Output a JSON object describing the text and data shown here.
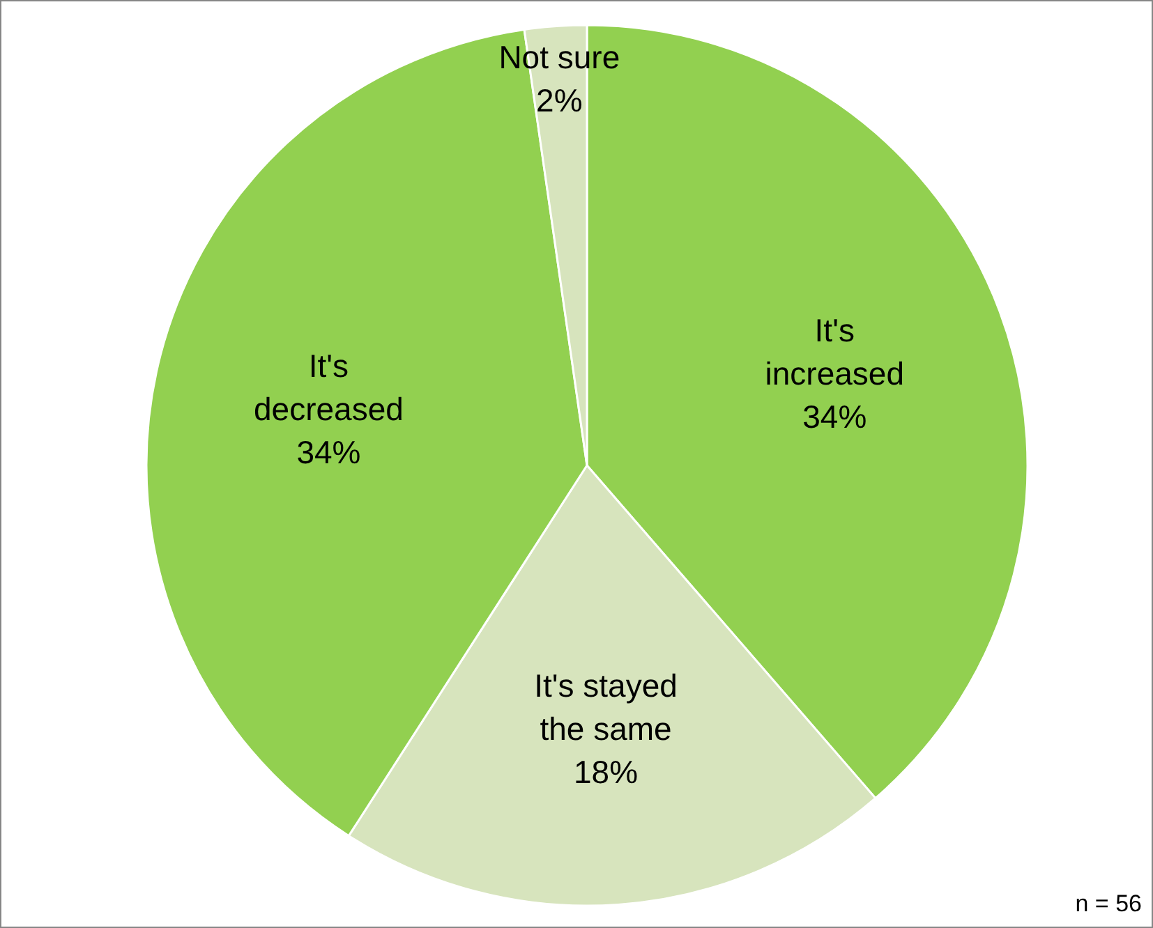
{
  "chart_data": {
    "type": "pie",
    "categories": [
      "It's increased",
      "It's stayed the same",
      "It's decreased",
      "Not sure"
    ],
    "values": [
      34,
      18,
      34,
      2
    ],
    "colors": [
      "#92d050",
      "#d7e4bd",
      "#92d050",
      "#d7e4bd"
    ],
    "value_labels": [
      "34%",
      "18%",
      "34%",
      "2%"
    ],
    "annotations": [
      "n = 56"
    ]
  }
}
